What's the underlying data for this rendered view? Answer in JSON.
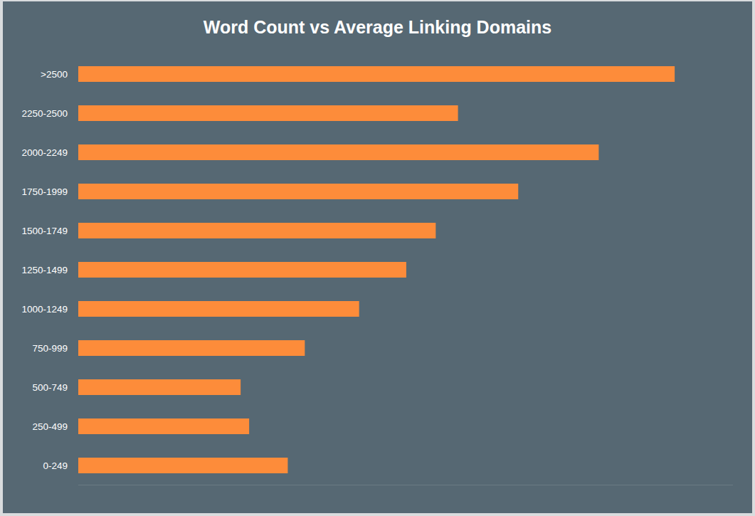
{
  "chart_data": {
    "type": "bar",
    "orientation": "horizontal",
    "title": "Word Count vs Average Linking Domains",
    "categories": [
      ">2500",
      "2250-2500",
      "2000-2249",
      "1750-1999",
      "1500-1749",
      "1250-1499",
      "1000-1249",
      "750-999",
      "500-749",
      "250-499",
      "0-249"
    ],
    "values": [
      91.1,
      58.0,
      79.5,
      67.2,
      54.6,
      50.1,
      42.9,
      34.6,
      24.8,
      26.1,
      32.0
    ],
    "color": "#fd8c3a",
    "xlim": [
      0,
      100
    ],
    "tick_labels": "y",
    "grid": false
  }
}
